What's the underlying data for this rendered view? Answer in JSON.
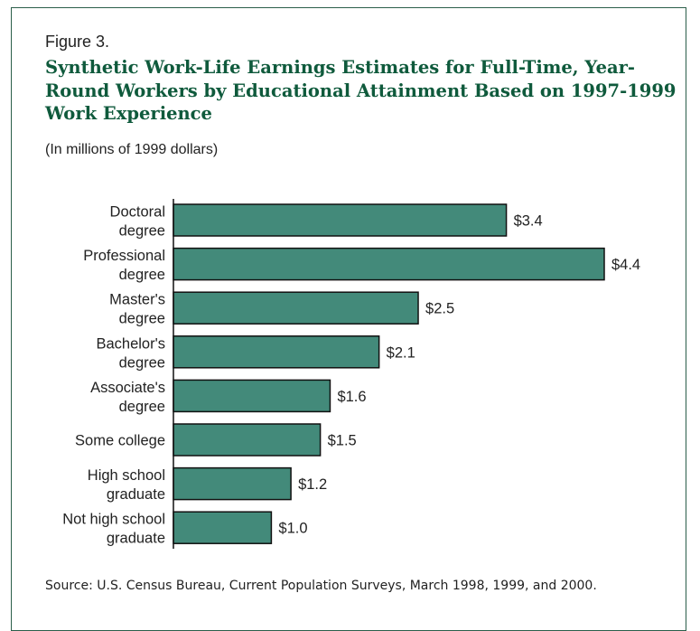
{
  "figure_label": "Figure 3.",
  "chart_data": {
    "type": "bar",
    "orientation": "horizontal",
    "title": "Synthetic Work-Life Earnings Estimates for Full-Time, Year-Round Workers by Educational Attainment Based on 1997-1999 Work Experience",
    "subtitle": "(In millions of 1999 dollars)",
    "categories": [
      [
        "Doctoral",
        "degree"
      ],
      [
        "Professional",
        "degree"
      ],
      [
        "Master's",
        "degree"
      ],
      [
        "Bachelor's",
        "degree"
      ],
      [
        "Associate's",
        "degree"
      ],
      [
        "Some  college"
      ],
      [
        "High school",
        "graduate"
      ],
      [
        "Not high school",
        "graduate"
      ]
    ],
    "values": [
      3.4,
      4.4,
      2.5,
      2.1,
      1.6,
      1.5,
      1.2,
      1.0
    ],
    "data_labels": [
      "$3.4",
      "$4.4",
      "$2.5",
      "$2.1",
      "$1.6",
      "$1.5",
      "$1.2",
      "$1.0"
    ],
    "xlim": [
      0,
      4.4
    ],
    "grid": false,
    "bar_color": "#438a7a",
    "title_color": "#0f5a3c"
  },
  "source": "Source: U.S. Census Bureau, Current Population Surveys, March 1998, 1999, and 2000."
}
